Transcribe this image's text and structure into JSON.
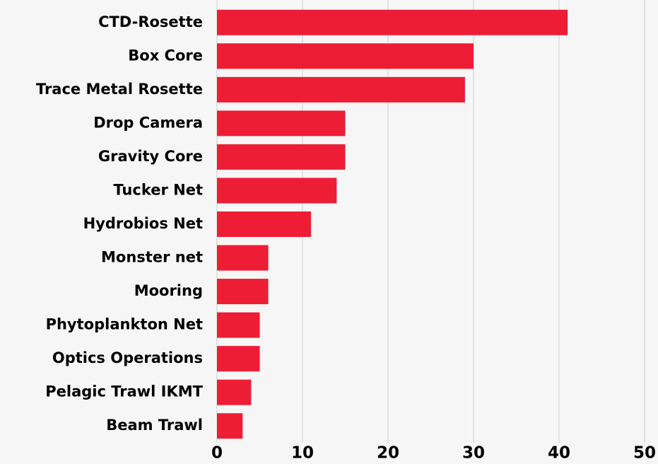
{
  "chart_data": {
    "type": "bar",
    "orientation": "horizontal",
    "categories": [
      "CTD-Rosette",
      "Box Core",
      "Trace Metal Rosette",
      "Drop Camera",
      "Gravity Core",
      "Tucker Net",
      "Hydrobios Net",
      "Monster net",
      "Mooring",
      "Phytoplankton Net",
      "Optics Operations",
      "Pelagic Trawl IKMT",
      "Beam Trawl"
    ],
    "values": [
      41,
      30,
      29,
      15,
      15,
      14,
      11,
      6,
      6,
      5,
      5,
      4,
      3
    ],
    "color": "#ee1d36",
    "xlim": [
      0,
      50
    ],
    "xticks": [
      0,
      10,
      20,
      30,
      40,
      50
    ],
    "grid": true
  }
}
